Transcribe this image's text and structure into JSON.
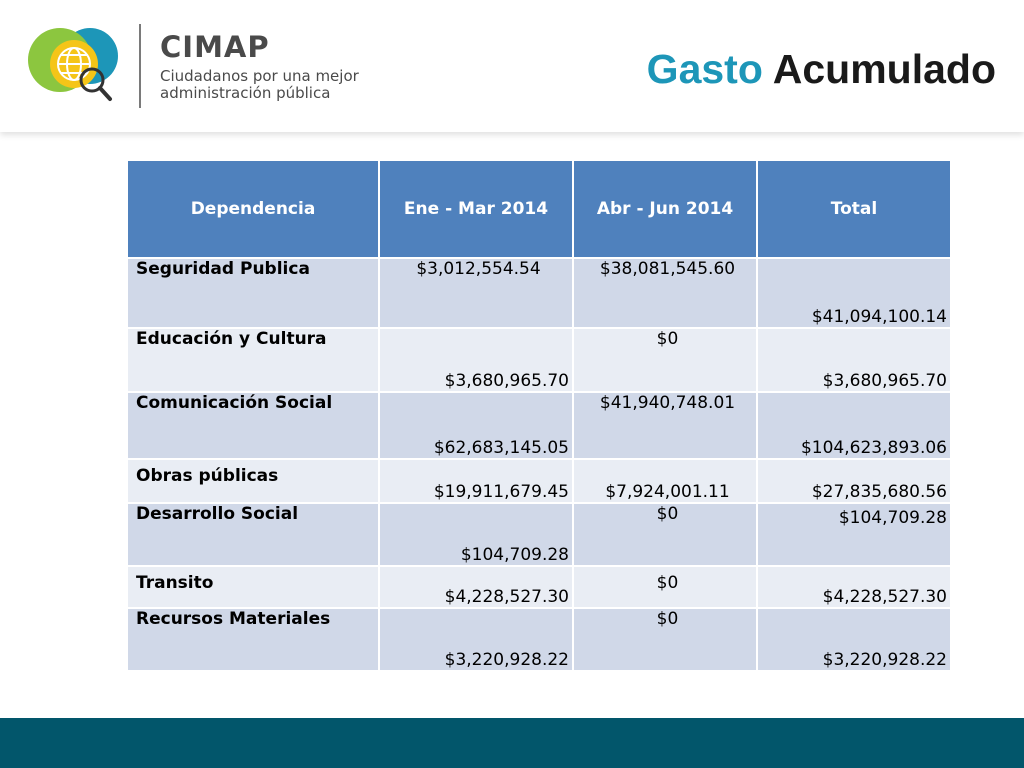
{
  "header": {
    "logo_name": "CIMAP",
    "logo_tagline": "Ciudadanos por una mejor administración pública",
    "title_part1": "Gasto",
    "title_part2": "Acumulado"
  },
  "table": {
    "columns": [
      "Dependencia",
      "Ene - Mar 2014",
      "Abr - Jun 2014",
      "Total"
    ],
    "rows": [
      {
        "dependencia": "Seguridad Publica",
        "ene_mar": "$3,012,554.54",
        "abr_jun": "$38,081,545.60",
        "total": "$41,094,100.14"
      },
      {
        "dependencia": "Educación y Cultura",
        "ene_mar": "$3,680,965.70",
        "abr_jun": "$0",
        "total": "$3,680,965.70"
      },
      {
        "dependencia": "Comunicación Social",
        "ene_mar": "$62,683,145.05",
        "abr_jun": "$41,940,748.01",
        "total": "$104,623,893.06"
      },
      {
        "dependencia": "Obras públicas",
        "ene_mar": "$19,911,679.45",
        "abr_jun": "$7,924,001.11",
        "total": "$27,835,680.56"
      },
      {
        "dependencia": "Desarrollo Social",
        "ene_mar": "$104,709.28",
        "abr_jun": "$0",
        "total": "$104,709.28"
      },
      {
        "dependencia": "Transito",
        "ene_mar": "$4,228,527.30",
        "abr_jun": "$0",
        "total": "$4,228,527.30"
      },
      {
        "dependencia": "Recursos Materiales",
        "ene_mar": "$3,220,928.22",
        "abr_jun": "$0",
        "total": "$3,220,928.22"
      }
    ]
  },
  "colors": {
    "header_fill": "#4f81bd",
    "row_odd": "#d0d8e8",
    "row_even": "#e9edf4",
    "title_accent": "#1d96b8",
    "footer": "#02566b"
  },
  "icons": {
    "logo": "globe-magnifier-icon"
  }
}
